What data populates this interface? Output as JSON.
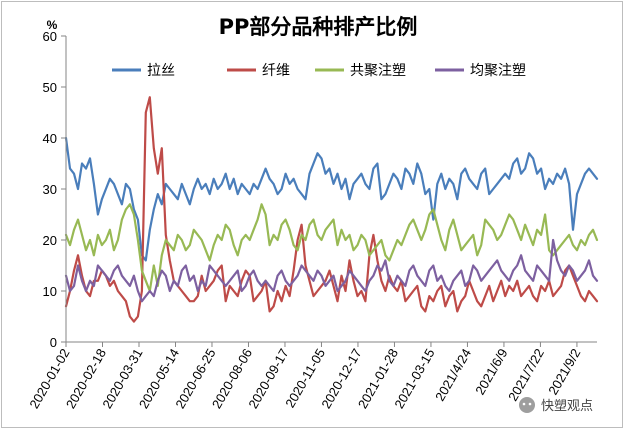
{
  "chart_data": {
    "type": "line",
    "title": "PP部分品种排产比例",
    "ylabel_unit": "%",
    "ylim": [
      0,
      60
    ],
    "yticks": [
      "0",
      "10",
      "20",
      "30",
      "40",
      "50",
      "60"
    ],
    "xtick_labels": [
      "2020-01-02",
      "2020-02-18",
      "2020-03-31",
      "2020-05-14",
      "2020-06-25",
      "2020-08-06",
      "2020-09-17",
      "2020-11-05",
      "2020-12-17",
      "2021-01-28",
      "2021-03-15",
      "2021/4/24",
      "2021/6/9",
      "2021/7/22",
      "2021/9/2"
    ],
    "legend_position": "top",
    "grid": false,
    "series": [
      {
        "name": "拉丝",
        "color": "#4a7ebb",
        "values": [
          40,
          34,
          33,
          30,
          35,
          34,
          36,
          31,
          25,
          28,
          30,
          32,
          31,
          29,
          27,
          31,
          30,
          26,
          24,
          17,
          16,
          22,
          26,
          29,
          27,
          31,
          30,
          29,
          28,
          31,
          29,
          27,
          30,
          32,
          30,
          31,
          29,
          32,
          30,
          31,
          33,
          30,
          32,
          29,
          31,
          30,
          29,
          31,
          30,
          32,
          34,
          32,
          31,
          29,
          30,
          33,
          31,
          32,
          30,
          29,
          28,
          33,
          35,
          37,
          36,
          33,
          34,
          31,
          33,
          30,
          32,
          28,
          31,
          32,
          33,
          31,
          30,
          34,
          35,
          28,
          29,
          31,
          33,
          32,
          30,
          34,
          33,
          31,
          35,
          33,
          29,
          30,
          24,
          31,
          33,
          30,
          32,
          31,
          28,
          33,
          34,
          32,
          31,
          30,
          33,
          34,
          29,
          30,
          31,
          32,
          33,
          32,
          35,
          36,
          33,
          34,
          37,
          36,
          33,
          34,
          30,
          32,
          31,
          33,
          32,
          34,
          31,
          22,
          29,
          31,
          33,
          34,
          33,
          32
        ]
      },
      {
        "name": "纤维",
        "color": "#be4b48",
        "values": [
          7,
          10,
          14,
          17,
          13,
          10,
          9,
          12,
          12,
          14,
          13,
          11,
          12,
          10,
          9,
          8,
          5,
          4,
          5,
          10,
          45,
          48,
          38,
          33,
          38,
          21,
          16,
          12,
          11,
          10,
          9,
          8,
          8,
          9,
          13,
          10,
          11,
          12,
          14,
          15,
          8,
          11,
          10,
          9,
          12,
          14,
          13,
          8,
          9,
          10,
          12,
          6,
          7,
          10,
          8,
          11,
          9,
          14,
          20,
          23,
          15,
          12,
          9,
          10,
          11,
          12,
          14,
          11,
          8,
          13,
          10,
          16,
          12,
          9,
          10,
          8,
          17,
          21,
          16,
          12,
          10,
          13,
          11,
          10,
          12,
          8,
          9,
          10,
          11,
          7,
          6,
          9,
          8,
          10,
          11,
          7,
          9,
          10,
          6,
          8,
          9,
          12,
          10,
          8,
          7,
          9,
          11,
          8,
          10,
          12,
          9,
          11,
          10,
          12,
          9,
          10,
          11,
          9,
          8,
          11,
          10,
          12,
          9,
          10,
          11,
          14,
          15,
          13,
          11,
          9,
          8,
          10,
          9,
          8
        ]
      },
      {
        "name": "共聚注塑",
        "color": "#98b954",
        "values": [
          21,
          19,
          22,
          24,
          21,
          18,
          20,
          17,
          21,
          19,
          20,
          22,
          18,
          20,
          24,
          26,
          27,
          25,
          20,
          14,
          12,
          10,
          15,
          11,
          17,
          20,
          19,
          18,
          21,
          20,
          18,
          19,
          22,
          21,
          20,
          18,
          16,
          19,
          21,
          20,
          23,
          22,
          19,
          17,
          20,
          21,
          20,
          22,
          24,
          27,
          25,
          19,
          21,
          20,
          23,
          24,
          22,
          19,
          18,
          21,
          20,
          23,
          24,
          21,
          20,
          22,
          23,
          24,
          19,
          22,
          20,
          21,
          18,
          19,
          21,
          20,
          17,
          18,
          19,
          20,
          17,
          16,
          18,
          20,
          19,
          21,
          23,
          24,
          22,
          20,
          22,
          25,
          26,
          23,
          20,
          18,
          22,
          24,
          21,
          18,
          19,
          20,
          21,
          17,
          19,
          24,
          23,
          22,
          20,
          21,
          23,
          25,
          24,
          22,
          20,
          23,
          21,
          19,
          22,
          21,
          25,
          18,
          17,
          18,
          19,
          20,
          21,
          19,
          18,
          20,
          19,
          21,
          22,
          20
        ]
      },
      {
        "name": "均聚注塑",
        "color": "#7d60a0",
        "values": [
          13,
          10,
          11,
          15,
          12,
          10,
          12,
          11,
          15,
          14,
          13,
          12,
          14,
          15,
          13,
          12,
          11,
          13,
          10,
          8,
          9,
          10,
          9,
          12,
          14,
          13,
          10,
          12,
          11,
          14,
          15,
          12,
          13,
          10,
          12,
          11,
          15,
          14,
          13,
          12,
          11,
          12,
          13,
          14,
          10,
          11,
          13,
          14,
          12,
          11,
          12,
          11,
          10,
          13,
          14,
          12,
          11,
          12,
          13,
          15,
          14,
          13,
          12,
          14,
          13,
          11,
          12,
          13,
          10,
          11,
          12,
          14,
          13,
          12,
          11,
          10,
          12,
          13,
          15,
          14,
          16,
          12,
          11,
          13,
          12,
          11,
          14,
          15,
          13,
          12,
          11,
          14,
          15,
          12,
          13,
          11,
          10,
          12,
          13,
          14,
          11,
          12,
          15,
          14,
          12,
          13,
          14,
          15,
          16,
          14,
          13,
          12,
          14,
          15,
          17,
          14,
          13,
          12,
          15,
          14,
          13,
          12,
          20,
          16,
          14,
          13,
          15,
          14,
          12,
          13,
          14,
          16,
          13,
          12
        ]
      }
    ]
  },
  "watermark": "快塑观点"
}
